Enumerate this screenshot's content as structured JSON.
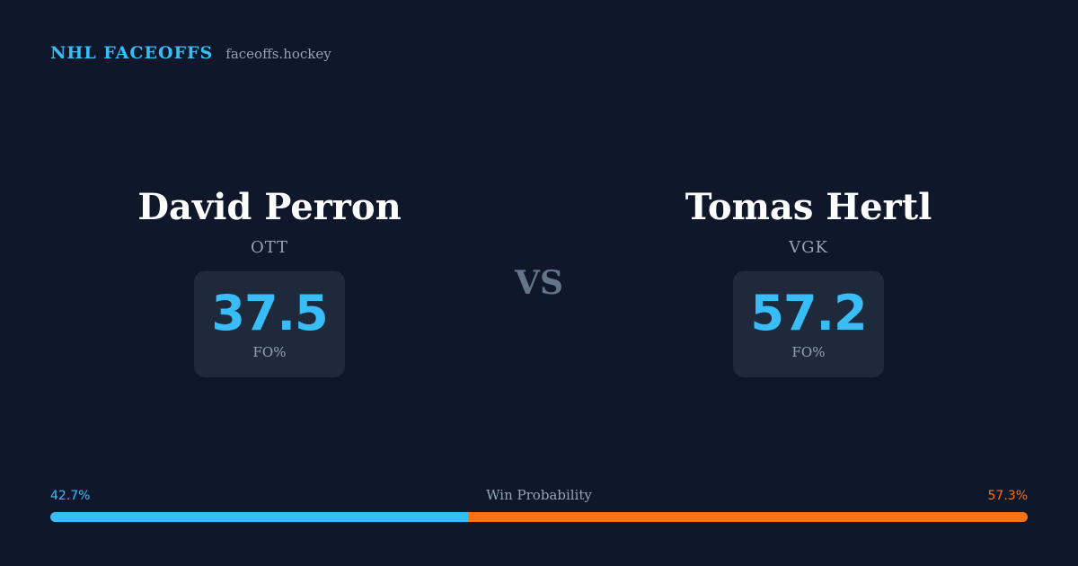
{
  "brand": {
    "name": "NHL FACEOFFS",
    "url": "faceoffs.hockey"
  },
  "players": [
    {
      "name": "David Perron",
      "team": "OTT",
      "fo_value": "37.5",
      "fo_label": "FO%"
    },
    {
      "name": "Tomas Hertl",
      "team": "VGK",
      "fo_value": "57.2",
      "fo_label": "FO%"
    }
  ],
  "vs_label": "VS",
  "win_probability": {
    "title": "Win Probability",
    "left_label": "42.7%",
    "right_label": "57.3%",
    "left_value": 42.7,
    "right_value": 57.3
  },
  "colors": {
    "background": "#0f172a",
    "accent": "#38bdf8",
    "opponent": "#f97316",
    "card": "#1e293b"
  }
}
